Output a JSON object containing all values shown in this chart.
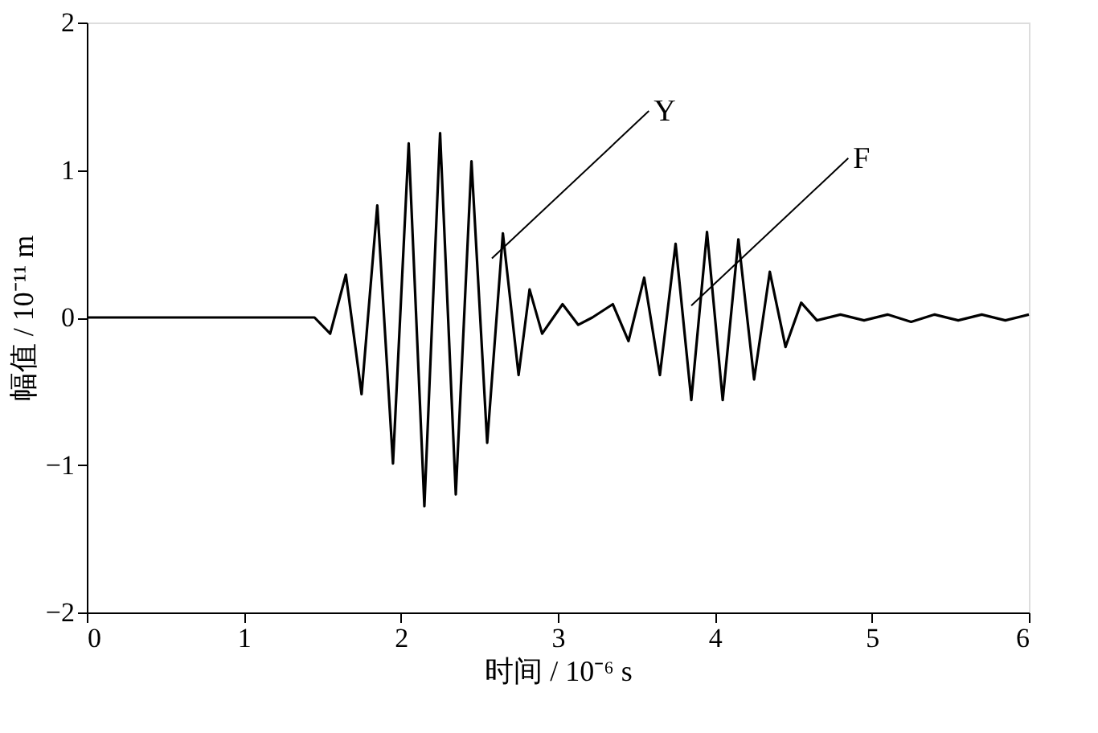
{
  "chart_data": {
    "type": "line",
    "xlabel": "时间 / 10⁻⁶ s",
    "ylabel": "幅值 / 10⁻¹¹ m",
    "xlim": [
      0,
      6
    ],
    "ylim": [
      -2,
      2
    ],
    "xticks": [
      0,
      1,
      2,
      3,
      4,
      5,
      6
    ],
    "yticks": [
      -2,
      -1,
      0,
      1,
      2
    ],
    "grid": false,
    "marker": "none",
    "line_style": "solid",
    "x": [
      0,
      1.45,
      1.55,
      1.65,
      1.75,
      1.85,
      1.95,
      2.05,
      2.15,
      2.25,
      2.35,
      2.45,
      2.55,
      2.65,
      2.75,
      2.82,
      2.9,
      3.03,
      3.13,
      3.22,
      3.35,
      3.45,
      3.55,
      3.65,
      3.75,
      3.85,
      3.95,
      4.05,
      4.15,
      4.25,
      4.35,
      4.45,
      4.55,
      4.65,
      4.8,
      4.95,
      5.1,
      5.25,
      5.4,
      5.55,
      5.7,
      5.85,
      6
    ],
    "series": [
      {
        "color": "#000000",
        "values": [
          0,
          0,
          -0.11,
          0.29,
          -0.52,
          0.76,
          -0.99,
          1.18,
          -1.28,
          1.25,
          -1.2,
          1.06,
          -0.85,
          0.57,
          -0.39,
          0.19,
          -0.11,
          0.09,
          -0.05,
          0,
          0.09,
          -0.16,
          0.27,
          -0.39,
          0.5,
          -0.56,
          0.58,
          -0.56,
          0.53,
          -0.42,
          0.31,
          -0.2,
          0.1,
          -0.02,
          0.02,
          -0.02,
          0.02,
          -0.03,
          0.02,
          -0.02,
          0.02,
          -0.02,
          0.02
        ]
      }
    ],
    "annotations": [
      {
        "text": "Y",
        "x": 2.58,
        "y": 0.4
      },
      {
        "text": "F",
        "x": 3.85,
        "y": 0.08
      }
    ]
  }
}
